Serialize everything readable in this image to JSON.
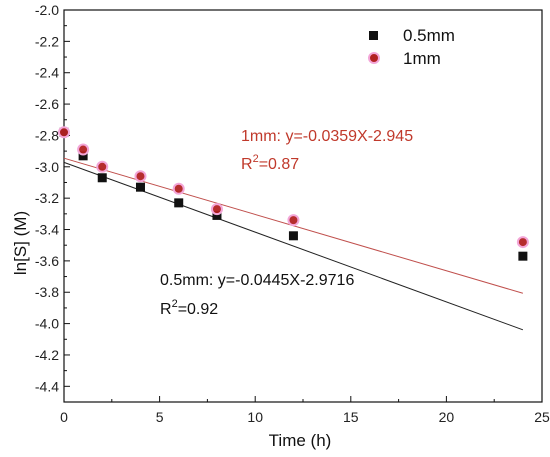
{
  "chart_data": {
    "type": "scatter",
    "title": "",
    "xlabel": "Time (h)",
    "ylabel": "ln[S] (M)",
    "xlim": [
      0,
      25
    ],
    "ylim": [
      -4.5,
      -2.0
    ],
    "x_ticks": [
      0,
      5,
      10,
      15,
      20,
      25
    ],
    "y_ticks": [
      -2.0,
      -2.2,
      -2.4,
      -2.6,
      -2.8,
      -3.0,
      -3.2,
      -3.4,
      -3.6,
      -3.8,
      -4.0,
      -4.2,
      -4.4
    ],
    "x_tick_labels": [
      "0",
      "5",
      "10",
      "15",
      "20",
      "25"
    ],
    "y_tick_labels": [
      "-2.0",
      "-2.2",
      "-2.4",
      "-2.6",
      "-2.8",
      "-3.0",
      "-3.2",
      "-3.4",
      "-3.6",
      "-3.8",
      "-4.0",
      "-4.2",
      "-4.4"
    ],
    "grid": false,
    "legend_position": "top-right",
    "series": [
      {
        "name": "0.5mm",
        "marker": "square",
        "color": "#111111",
        "fit_color": "#222222",
        "x": [
          0,
          1,
          2,
          4,
          6,
          8,
          12,
          24
        ],
        "y": [
          -2.78,
          -2.93,
          -3.07,
          -3.13,
          -3.23,
          -3.31,
          -3.44,
          -3.57
        ],
        "fit": {
          "slope": -0.0445,
          "intercept": -2.9716,
          "equation": "0.5mm: y=-0.0445X-2.9716",
          "r2_prefix": "R",
          "r2_sup": "2",
          "r2_value": "=0.92"
        }
      },
      {
        "name": "1mm",
        "marker": "circle",
        "color": "#b22222",
        "fit_color": "#c0504d",
        "x": [
          0,
          1,
          2,
          4,
          6,
          8,
          12,
          24
        ],
        "y": [
          -2.78,
          -2.89,
          -3.0,
          -3.06,
          -3.14,
          -3.27,
          -3.34,
          -3.48
        ],
        "fit": {
          "slope": -0.0359,
          "intercept": -2.945,
          "equation": "1mm: y=-0.0359X-2.945",
          "r2_prefix": "R",
          "r2_sup": "2",
          "r2_value": "=0.87"
        }
      }
    ]
  }
}
